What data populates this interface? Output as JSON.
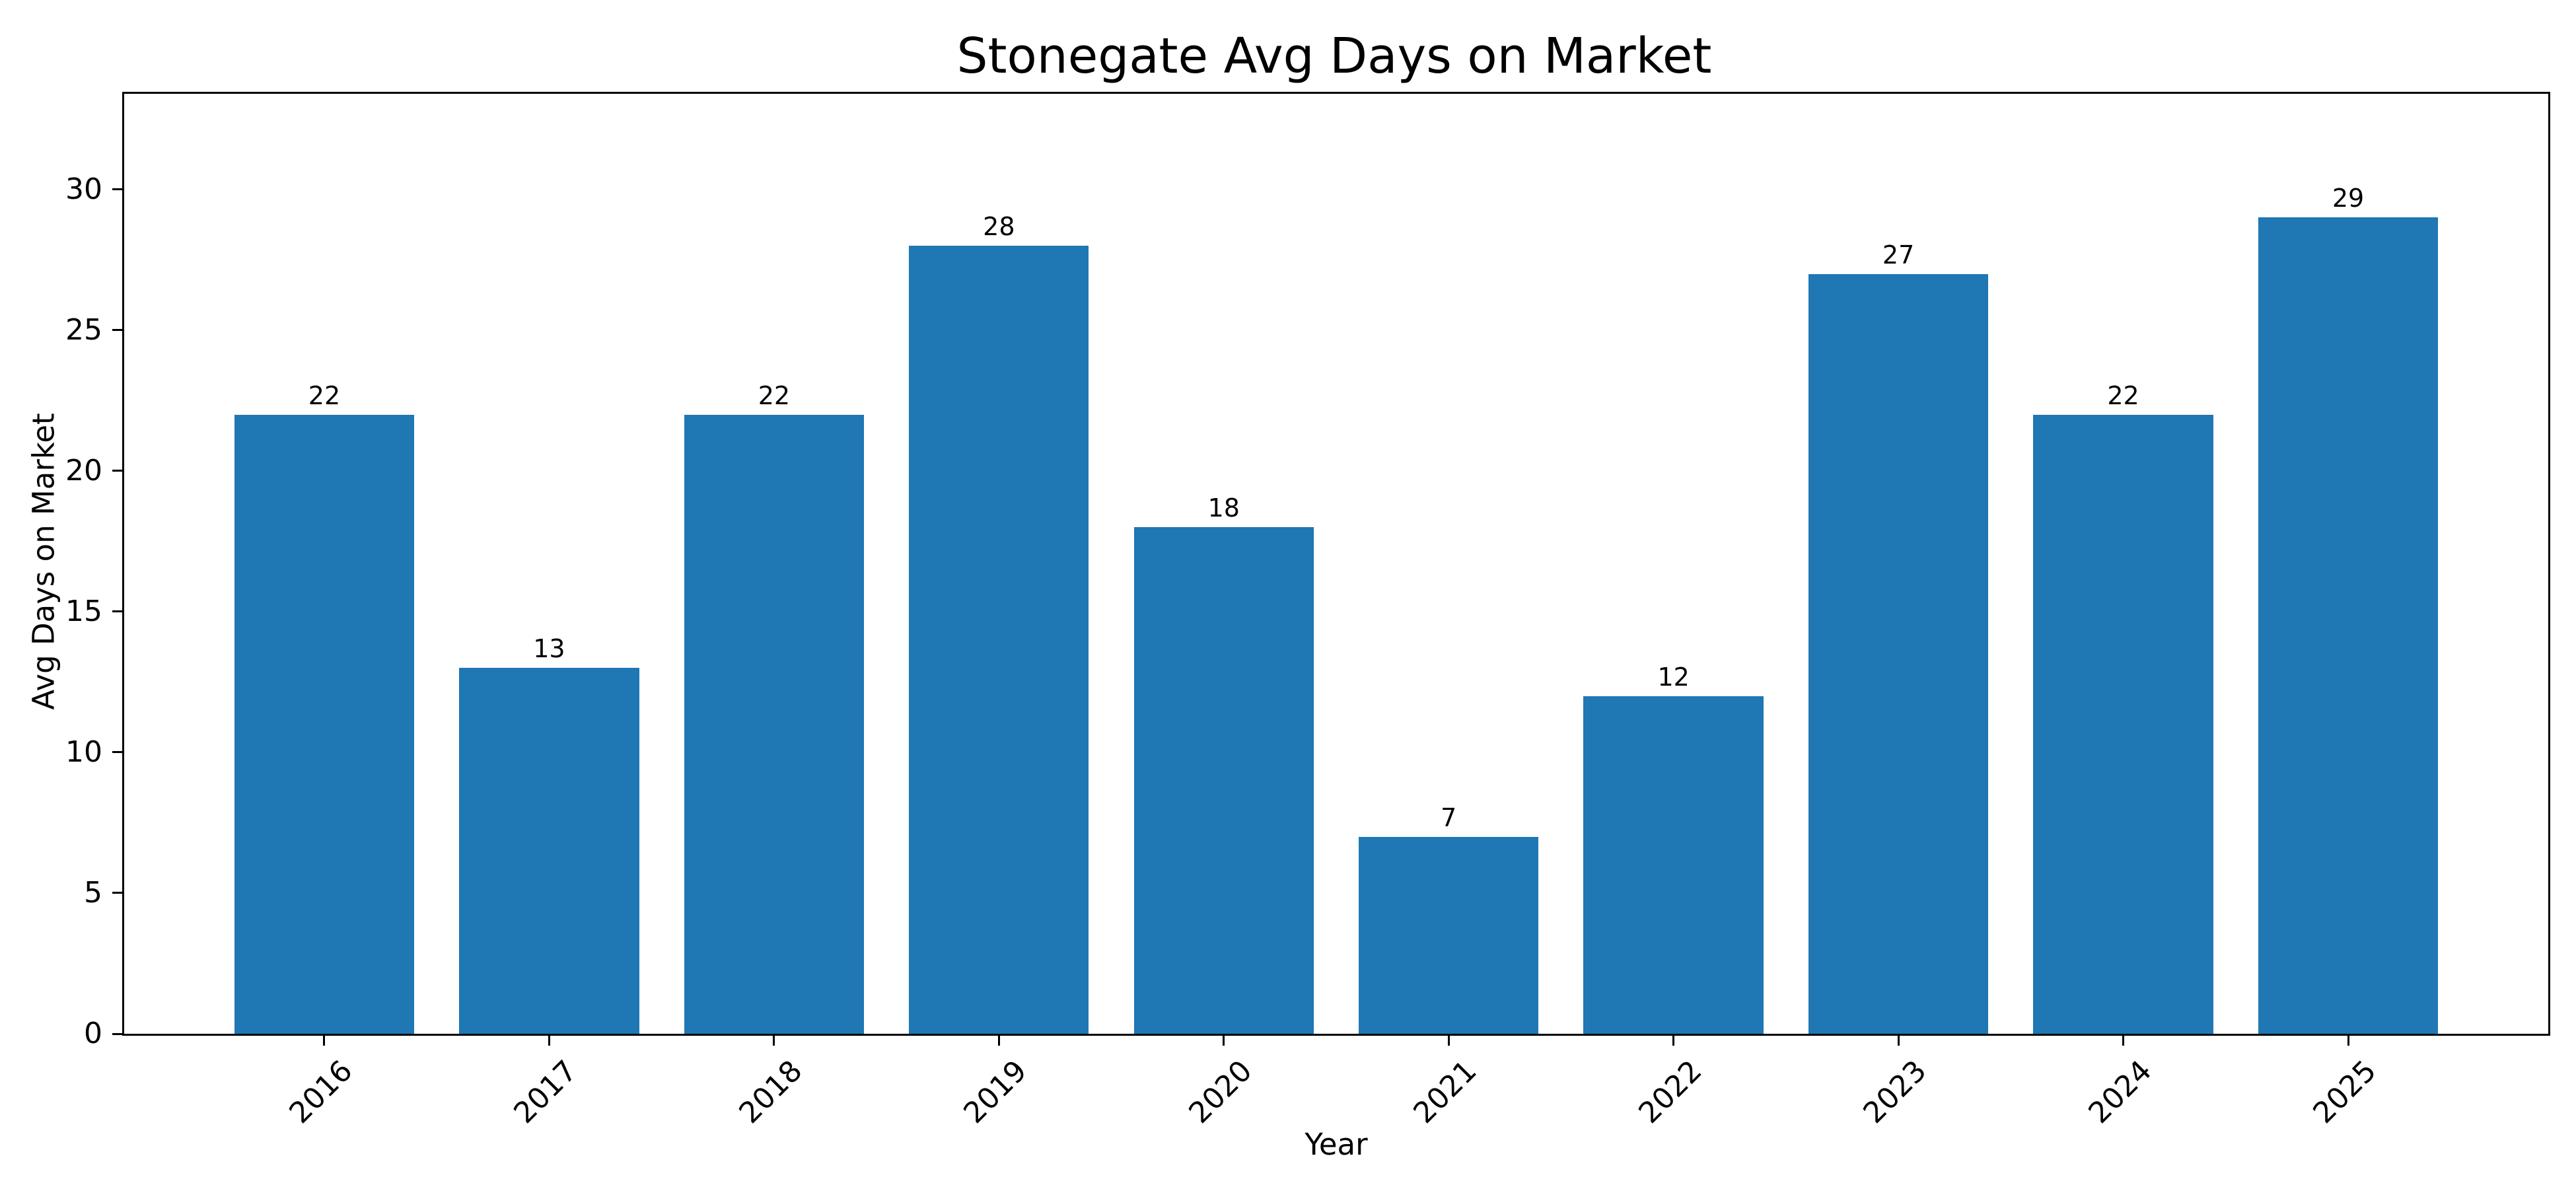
{
  "title": "Stonegate Avg Days on Market",
  "chart_data": {
    "type": "bar",
    "title": "Stonegate Avg Days on Market",
    "xlabel": "Year",
    "ylabel": "Avg Days on Market",
    "categories": [
      "2016",
      "2017",
      "2018",
      "2019",
      "2020",
      "2021",
      "2022",
      "2023",
      "2024",
      "2025"
    ],
    "values": [
      22,
      13,
      22,
      28,
      18,
      7,
      12,
      27,
      22,
      29
    ],
    "bar_value_labels": [
      "22",
      "13",
      "22",
      "28",
      "18",
      "7",
      "12",
      "27",
      "22",
      "29"
    ],
    "yticks": [
      0,
      5,
      10,
      15,
      20,
      25,
      30
    ],
    "ylim": [
      0,
      33.4
    ],
    "bar_color": "#1f77b4",
    "axis_color": "#000000",
    "text_color": "#000000",
    "background_color": "#ffffff",
    "grid": false,
    "legend": null,
    "bar_width_fraction": 0.8,
    "x_margin_fraction": 0.05,
    "xtick_rotation_degrees": 45
  }
}
